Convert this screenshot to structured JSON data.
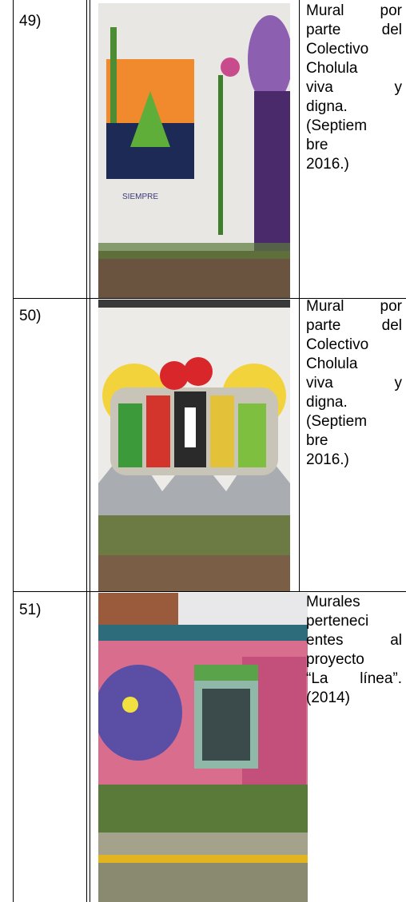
{
  "table": {
    "rows": [
      {
        "number": "49)",
        "caption_lines": [
          "Mural por",
          "parte del",
          "Colectivo",
          "Cholula",
          "viva y",
          "digna.",
          "(Septiem",
          "bre",
          "2016.)"
        ]
      },
      {
        "number": "50)",
        "caption_lines": [
          "Mural por",
          "parte del",
          "Colectivo",
          "Cholula",
          "viva y",
          "digna.",
          "(Septiem",
          "bre",
          "2016.)"
        ]
      },
      {
        "number": "51)",
        "caption_lines": [
          "Murales",
          "perteneci",
          "entes al",
          "proyecto",
          "“La línea”.",
          "(2014)"
        ]
      }
    ]
  }
}
